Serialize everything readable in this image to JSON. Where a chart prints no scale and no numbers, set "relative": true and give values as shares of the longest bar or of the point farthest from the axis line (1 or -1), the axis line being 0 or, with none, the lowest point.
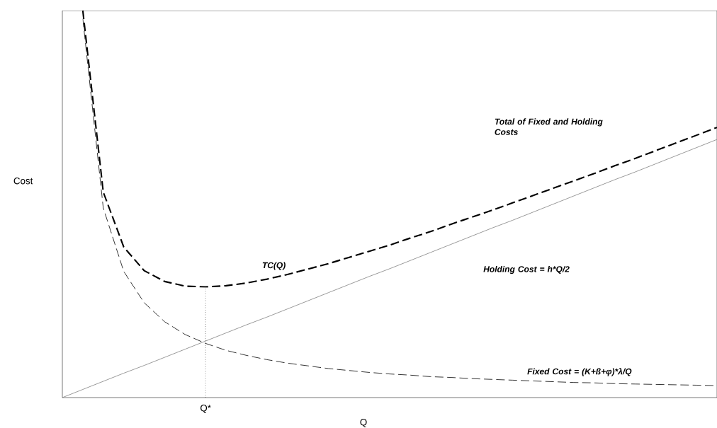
{
  "chart_data": {
    "type": "line",
    "relative": true,
    "xlabel": "Q",
    "ylabel": "Cost",
    "categories": [
      null,
      null,
      null,
      null,
      null,
      null,
      null,
      null,
      null,
      null,
      null,
      null,
      null,
      null,
      null,
      null,
      null,
      null,
      null,
      null,
      null,
      null,
      null,
      null,
      null,
      null,
      null,
      null,
      null,
      null,
      null,
      null,
      null
    ],
    "series": [
      {
        "color": "#000000",
        "line_style": "dashed",
        "values": [
          null,
          1.0,
          0.531,
          0.389,
          0.328,
          0.3,
          0.288,
          0.286,
          0.289,
          0.296,
          0.306,
          0.318,
          0.332,
          0.346,
          0.362,
          0.378,
          0.394,
          0.412,
          0.429,
          0.448,
          0.466,
          0.484,
          0.503,
          0.522,
          0.541,
          0.56,
          0.579,
          0.599,
          0.618,
          0.638,
          0.658,
          0.678,
          0.698
        ]
      },
      {
        "color": "#808080",
        "line_style": "solid",
        "values": [
          0,
          0.021,
          0.042,
          0.063,
          0.083,
          0.104,
          0.125,
          0.146,
          0.167,
          0.188,
          0.208,
          0.229,
          0.25,
          0.271,
          0.292,
          0.313,
          0.333,
          0.354,
          0.375,
          0.396,
          0.417,
          0.438,
          0.458,
          0.479,
          0.5,
          0.521,
          0.542,
          0.563,
          0.583,
          0.604,
          0.625,
          0.646,
          0.667
        ]
      },
      {
        "color": "#000000",
        "line_style": "dashed",
        "values": [
          null,
          0.979,
          0.49,
          0.326,
          0.245,
          0.196,
          0.163,
          0.14,
          0.122,
          0.109,
          0.098,
          0.089,
          0.082,
          0.075,
          0.07,
          0.065,
          0.061,
          0.058,
          0.054,
          0.052,
          0.049,
          0.047,
          0.045,
          0.043,
          0.041,
          0.039,
          0.038,
          0.036,
          0.035,
          0.034,
          0.033,
          0.032,
          0.031
        ]
      }
    ],
    "annotations": [
      "Total of Fixed and Holding Costs",
      "TC(Q)",
      "Holding Cost = h*Q/2",
      "Fixed Cost = (K+ß+φ)*λ/Q",
      "Q*"
    ]
  }
}
